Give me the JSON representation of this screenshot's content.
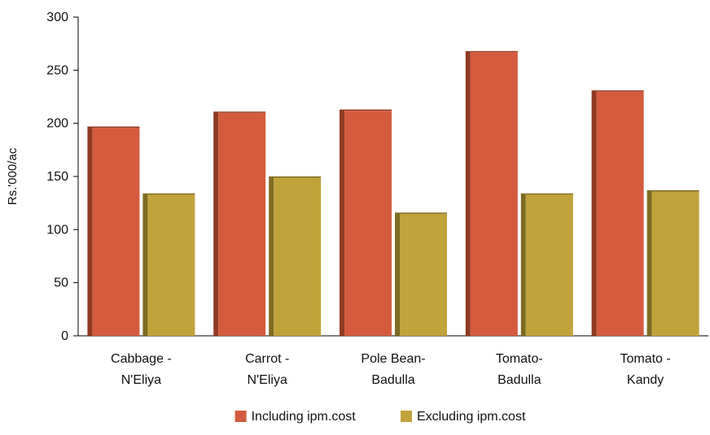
{
  "chart_data": {
    "type": "bar",
    "title": "",
    "xlabel": "",
    "ylabel": "Rs.'000/ac",
    "ylim": [
      0,
      300
    ],
    "yticks": [
      0,
      50,
      100,
      150,
      200,
      250,
      300
    ],
    "grid": false,
    "legend_position": "bottom-center",
    "categories": [
      [
        "Cabbage -",
        "N'Eliya"
      ],
      [
        "Carrot -",
        "N'Eliya"
      ],
      [
        "Pole Bean-",
        "Badulla"
      ],
      [
        "Tomato-",
        "Badulla"
      ],
      [
        "Tomato -",
        "Kandy"
      ]
    ],
    "series": [
      {
        "name": "Including ipm.cost",
        "values": [
          197,
          211,
          213,
          268,
          231
        ],
        "color": "#d45b3e",
        "side_color": "#8f3a22"
      },
      {
        "name": "Excluding ipm.cost",
        "values": [
          134,
          150,
          116,
          134,
          137
        ],
        "color": "#c1a33b",
        "side_color": "#7d6b22"
      }
    ]
  }
}
